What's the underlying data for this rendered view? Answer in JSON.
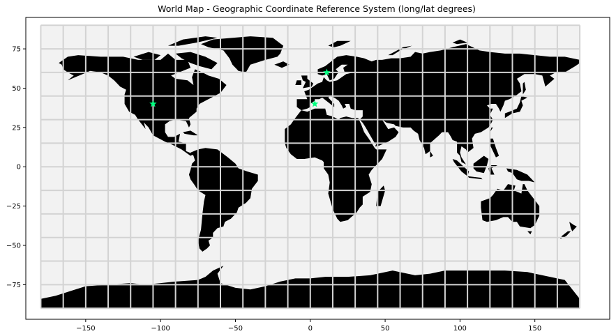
{
  "chart_data": {
    "type": "scatter",
    "title": "World Map - Geographic Coordinate Reference System (long/lat degrees)",
    "xlabel": "",
    "ylabel": "",
    "xlim": [
      -190,
      200
    ],
    "ylim": [
      -97,
      95
    ],
    "xticks": [
      -150,
      -100,
      -50,
      0,
      50,
      100,
      150
    ],
    "yticks": [
      75,
      50,
      25,
      0,
      -25,
      -50,
      -75
    ],
    "xtick_labels": [
      "−150",
      "−100",
      "−50",
      "0",
      "50",
      "100",
      "150"
    ],
    "ytick_labels": [
      "75",
      "50",
      "25",
      "0",
      "−25",
      "−50",
      "−75"
    ],
    "graticule": {
      "meridians": [
        -180,
        -165,
        -150,
        -135,
        -120,
        -105,
        -90,
        -75,
        -60,
        -45,
        -30,
        -15,
        0,
        15,
        30,
        45,
        60,
        75,
        90,
        105,
        120,
        135,
        150,
        165,
        180
      ],
      "parallels": [
        -90,
        -75,
        -60,
        -45,
        -30,
        -15,
        0,
        15,
        30,
        45,
        60,
        75,
        90
      ]
    },
    "grid": true,
    "colors": {
      "ocean": "#f2f2f2",
      "land": "#000000",
      "graticule": "#d3d3d3",
      "markers": "#00ff7f"
    },
    "series": [
      {
        "marker": "star",
        "points": [
          {
            "x": -105,
            "y": 40
          },
          {
            "x": 3,
            "y": 40
          },
          {
            "x": 11,
            "y": 60
          }
        ]
      }
    ]
  }
}
